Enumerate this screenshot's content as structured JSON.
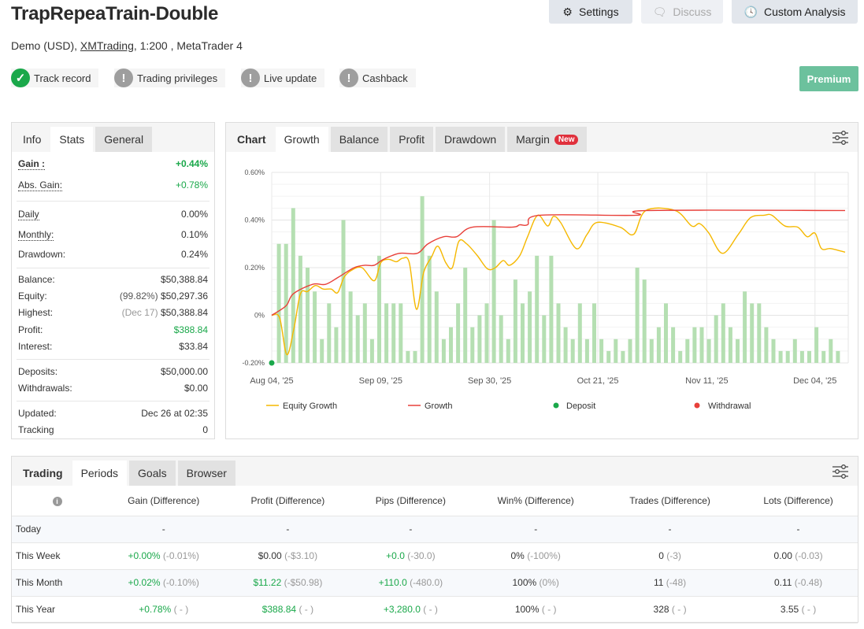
{
  "header": {
    "title": "TrapRepeaTrain-Double",
    "subtitle_prefix": "Demo (USD), ",
    "broker": "XMTrading",
    "subtitle_suffix": ", 1:200 , MetaTrader 4",
    "buttons": {
      "settings": "Settings",
      "discuss": "Discuss",
      "custom_analysis": "Custom Analysis",
      "premium": "Premium"
    },
    "badges": [
      {
        "label": "Track record",
        "status": "verified"
      },
      {
        "label": "Trading privileges",
        "status": "warning"
      },
      {
        "label": "Live update",
        "status": "warning"
      },
      {
        "label": "Cashback",
        "status": "warning"
      }
    ]
  },
  "colors": {
    "green": "#1aa84a",
    "equity": "#f5b800",
    "growth": "#e8403a",
    "bars": "#b5dfb2",
    "premium": "#6cc19d",
    "new_badge": "#e0303c"
  },
  "stats_panel": {
    "tabs": [
      "Info",
      "Stats",
      "General"
    ],
    "active_tab": "Stats",
    "gain": {
      "label": "Gain :",
      "value": "+0.44%"
    },
    "abs_gain": {
      "label": "Abs. Gain:",
      "value": "+0.78%"
    },
    "daily": {
      "label": "Daily",
      "value": "0.00%"
    },
    "monthly": {
      "label": "Monthly:",
      "value": "0.10%"
    },
    "drawdown": {
      "label": "Drawdown:",
      "value": "0.24%"
    },
    "balance": {
      "label": "Balance:",
      "value": "$50,388.84"
    },
    "equity": {
      "label": "Equity:",
      "note": "(99.82%)",
      "value": "$50,297.36"
    },
    "highest": {
      "label": "Highest:",
      "note": "(Dec 17)",
      "value": "$50,388.84"
    },
    "profit": {
      "label": "Profit:",
      "value": "$388.84"
    },
    "interest": {
      "label": "Interest:",
      "value": "$33.84"
    },
    "deposits": {
      "label": "Deposits:",
      "value": "$50,000.00"
    },
    "withdrawals": {
      "label": "Withdrawals:",
      "value": "$0.00"
    },
    "updated": {
      "label": "Updated:",
      "value": "Dec 26 at 02:35"
    },
    "tracking": {
      "label": "Tracking",
      "value": "0"
    }
  },
  "chart_panel": {
    "heading": "Chart",
    "tabs": [
      "Growth",
      "Balance",
      "Profit",
      "Drawdown",
      "Margin"
    ],
    "active_tab": "Growth",
    "new_badge": "New"
  },
  "chart_data": {
    "type": "line",
    "ylim": [
      -0.2,
      0.6
    ],
    "yticks": [
      "0.60%",
      "0.40%",
      "0.20%",
      "0%",
      "-0.20%"
    ],
    "ytick_values": [
      0.6,
      0.4,
      0.2,
      0,
      -0.2
    ],
    "xticks": [
      "Aug 04, '25",
      "Sep 09, '25",
      "Sep 30, '25",
      "Oct 21, '25",
      "Nov 11, '25",
      "Dec 04, '25"
    ],
    "xtick_index": [
      0,
      15.2,
      30.4,
      45.5,
      60.7,
      75.8
    ],
    "x_range": [
      0,
      80
    ],
    "legend": [
      "Equity Growth",
      "Growth",
      "Deposit",
      "Withdrawal"
    ],
    "legend_position": "bottom",
    "deposit_points": [
      [
        0,
        -0.2
      ]
    ],
    "series": [
      {
        "name": "Growth",
        "points": [
          [
            0,
            0
          ],
          [
            2,
            0.04
          ],
          [
            3,
            0.09
          ],
          [
            5.7,
            0.13
          ],
          [
            7.5,
            0.13
          ],
          [
            9.3,
            0.16
          ],
          [
            11.5,
            0.2
          ],
          [
            13,
            0.21
          ],
          [
            14.3,
            0.21
          ],
          [
            15.6,
            0.235
          ],
          [
            17.8,
            0.26
          ],
          [
            20.3,
            0.26
          ],
          [
            21.8,
            0.3
          ],
          [
            24,
            0.33
          ],
          [
            25.8,
            0.33
          ],
          [
            28,
            0.37
          ],
          [
            33.5,
            0.37
          ],
          [
            34.6,
            0.38
          ],
          [
            35.7,
            0.38
          ],
          [
            37.4,
            0.42
          ],
          [
            50.8,
            0.42
          ],
          [
            52.4,
            0.44
          ],
          [
            80,
            0.44
          ]
        ]
      },
      {
        "name": "Equity Growth",
        "points": [
          [
            0,
            0
          ],
          [
            1.1,
            -0.01
          ],
          [
            2.1,
            -0.165
          ],
          [
            3.1,
            -0.055
          ],
          [
            4,
            0.09
          ],
          [
            5,
            0.1
          ],
          [
            6.1,
            0.125
          ],
          [
            7.2,
            0.11
          ],
          [
            8.3,
            0.11
          ],
          [
            9.2,
            0.095
          ],
          [
            10.1,
            0.16
          ],
          [
            11.2,
            0.19
          ],
          [
            12.6,
            0.2
          ],
          [
            14.3,
            0.145
          ],
          [
            15.2,
            0.22
          ],
          [
            16.3,
            0.235
          ],
          [
            17.4,
            0.225
          ],
          [
            18.3,
            0.24
          ],
          [
            19.2,
            0.22
          ],
          [
            20.2,
            0.025
          ],
          [
            21.2,
            0.18
          ],
          [
            22.3,
            0.245
          ],
          [
            23.2,
            0.29
          ],
          [
            24.3,
            0.22
          ],
          [
            25.2,
            0.2
          ],
          [
            26.1,
            0.31
          ],
          [
            27.2,
            0.3
          ],
          [
            28.7,
            0.25
          ],
          [
            30.1,
            0.195
          ],
          [
            31.2,
            0.2
          ],
          [
            32.3,
            0.23
          ],
          [
            33.2,
            0.21
          ],
          [
            34.6,
            0.25
          ],
          [
            35.7,
            0.33
          ],
          [
            37.1,
            0.42
          ],
          [
            38.5,
            0.375
          ],
          [
            39.3,
            0.415
          ],
          [
            40.3,
            0.39
          ],
          [
            42.5,
            0.28
          ],
          [
            44,
            0.34
          ],
          [
            45.4,
            0.39
          ],
          [
            48.6,
            0.37
          ],
          [
            50.5,
            0.34
          ],
          [
            52.2,
            0.44
          ],
          [
            56.3,
            0.44
          ],
          [
            58.6,
            0.375
          ],
          [
            59.7,
            0.385
          ],
          [
            61,
            0.345
          ],
          [
            62.9,
            0.26
          ],
          [
            65.1,
            0.34
          ],
          [
            66.8,
            0.41
          ],
          [
            68.7,
            0.42
          ],
          [
            69.8,
            0.42
          ],
          [
            71.6,
            0.375
          ],
          [
            73.4,
            0.37
          ],
          [
            74.7,
            0.33
          ],
          [
            75.8,
            0.345
          ],
          [
            76.7,
            0.28
          ],
          [
            78,
            0.28
          ],
          [
            80,
            0.265
          ]
        ]
      },
      {
        "name": "Daily bars",
        "values": [
          0.3,
          0.3,
          0.45,
          0.25,
          0.2,
          0.1,
          -0.1,
          0.05,
          -0.05,
          0.4,
          0.1,
          0,
          0.05,
          -0.1,
          0.25,
          0.05,
          0.05,
          0.05,
          -0.15,
          -0.15,
          0.5,
          0.25,
          0.1,
          -0.1,
          -0.05,
          0.05,
          0.2,
          -0.05,
          0,
          0.05,
          0.4,
          0,
          -0.1,
          0.15,
          0.05,
          0.1,
          0.25,
          0,
          0.25,
          0.05,
          -0.05,
          -0.1,
          0.05,
          -0.1,
          0.05,
          -0.1,
          -0.15,
          -0.1,
          -0.15,
          -0.1,
          0.2,
          0.15,
          -0.1,
          -0.05,
          0.05,
          -0.05,
          -0.15,
          -0.1,
          -0.05,
          -0.05,
          -0.1,
          0,
          0.05,
          -0.05,
          -0.1,
          0.1,
          0.05,
          0.05,
          -0.05,
          -0.1,
          -0.15,
          -0.15,
          -0.1,
          -0.15,
          -0.15,
          -0.05,
          -0.15,
          -0.1,
          -0.15
        ]
      }
    ]
  },
  "periods_panel": {
    "heading": "Trading",
    "tabs": [
      "Periods",
      "Goals",
      "Browser"
    ],
    "active_tab": "Periods",
    "columns": [
      "Gain (Difference)",
      "Profit (Difference)",
      "Pips (Difference)",
      "Win% (Difference)",
      "Trades (Difference)",
      "Lots (Difference)"
    ],
    "rows": [
      {
        "period": "Today",
        "cells": [
          [
            "-",
            ""
          ],
          [
            "-",
            ""
          ],
          [
            "-",
            ""
          ],
          [
            "-",
            ""
          ],
          [
            "-",
            ""
          ],
          [
            "-",
            ""
          ]
        ],
        "green": [
          false,
          false,
          false,
          false,
          false,
          false
        ]
      },
      {
        "period": "This Week",
        "cells": [
          [
            "+0.00%",
            "(-0.01%)"
          ],
          [
            "$0.00",
            "(-$3.10)"
          ],
          [
            "+0.0",
            "(-30.0)"
          ],
          [
            "0%",
            "(-100%)"
          ],
          [
            "0",
            "(-3)"
          ],
          [
            "0.00",
            "(-0.03)"
          ]
        ],
        "green": [
          true,
          false,
          true,
          false,
          false,
          false
        ]
      },
      {
        "period": "This Month",
        "cells": [
          [
            "+0.02%",
            "(-0.10%)"
          ],
          [
            "$11.22",
            "(-$50.98)"
          ],
          [
            "+110.0",
            "(-480.0)"
          ],
          [
            "100%",
            "(0%)"
          ],
          [
            "11",
            "(-48)"
          ],
          [
            "0.11",
            "(-0.48)"
          ]
        ],
        "green": [
          true,
          true,
          true,
          false,
          false,
          false
        ]
      },
      {
        "period": "This Year",
        "cells": [
          [
            "+0.78%",
            "( - )"
          ],
          [
            "$388.84",
            "( - )"
          ],
          [
            "+3,280.0",
            "( - )"
          ],
          [
            "100%",
            "( - )"
          ],
          [
            "328",
            "( - )"
          ],
          [
            "3.55",
            "( - )"
          ]
        ],
        "green": [
          true,
          true,
          true,
          false,
          false,
          false
        ]
      }
    ]
  }
}
